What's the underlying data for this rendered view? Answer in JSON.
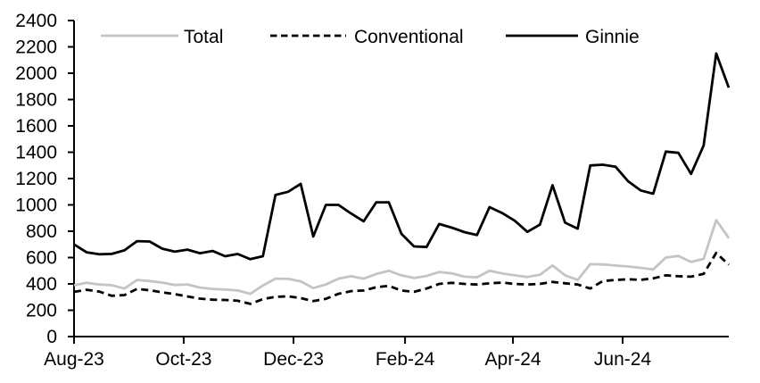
{
  "chart_data": {
    "type": "line",
    "title": "",
    "x_axis": {
      "tick_labels": [
        "Aug-23",
        "Oct-23",
        "Dec-23",
        "Feb-24",
        "Apr-24",
        "Jun-24"
      ],
      "tick_positions_weeks": [
        0,
        8.71,
        17.43,
        26.29,
        34.86,
        43.57
      ],
      "total_weeks": 52,
      "unit": "weekly"
    },
    "y_axis": {
      "min": 0,
      "max": 2400,
      "tick_step": 200,
      "tick_labels": [
        "0",
        "200",
        "400",
        "600",
        "800",
        "1000",
        "1200",
        "1400",
        "1600",
        "1800",
        "2000",
        "2200",
        "2400"
      ]
    },
    "grid": false,
    "legend_position": "top",
    "series": [
      {
        "name": "Total",
        "color": "#c4c4c4",
        "line_style": "solid",
        "values": [
          390,
          408,
          396,
          390,
          365,
          430,
          422,
          410,
          392,
          396,
          372,
          362,
          357,
          350,
          325,
          388,
          440,
          438,
          420,
          368,
          395,
          440,
          458,
          440,
          475,
          500,
          465,
          445,
          460,
          490,
          480,
          455,
          450,
          500,
          480,
          465,
          452,
          470,
          540,
          465,
          430,
          550,
          548,
          540,
          532,
          522,
          510,
          600,
          612,
          567,
          590,
          885,
          748
        ]
      },
      {
        "name": "Conventional",
        "color": "#000000",
        "line_style": "dashed",
        "values": [
          340,
          355,
          342,
          310,
          315,
          362,
          352,
          336,
          322,
          305,
          288,
          280,
          278,
          272,
          248,
          285,
          302,
          306,
          292,
          270,
          287,
          325,
          345,
          350,
          375,
          385,
          350,
          340,
          365,
          400,
          408,
          400,
          395,
          405,
          410,
          400,
          395,
          400,
          415,
          405,
          395,
          365,
          422,
          430,
          435,
          431,
          442,
          465,
          458,
          455,
          476,
          635,
          545
        ]
      },
      {
        "name": "Ginnie",
        "color": "#000000",
        "line_style": "solid",
        "values": [
          700,
          640,
          625,
          628,
          655,
          725,
          722,
          668,
          645,
          660,
          633,
          650,
          610,
          627,
          588,
          610,
          1075,
          1100,
          1160,
          760,
          1000,
          1000,
          935,
          875,
          1020,
          1020,
          780,
          685,
          680,
          855,
          827,
          793,
          771,
          983,
          938,
          880,
          795,
          850,
          1150,
          865,
          820,
          1300,
          1305,
          1290,
          1180,
          1110,
          1085,
          1405,
          1395,
          1235,
          1450,
          2150,
          1890
        ]
      }
    ]
  },
  "colors": {
    "axis": "#000000",
    "background": "#ffffff"
  }
}
